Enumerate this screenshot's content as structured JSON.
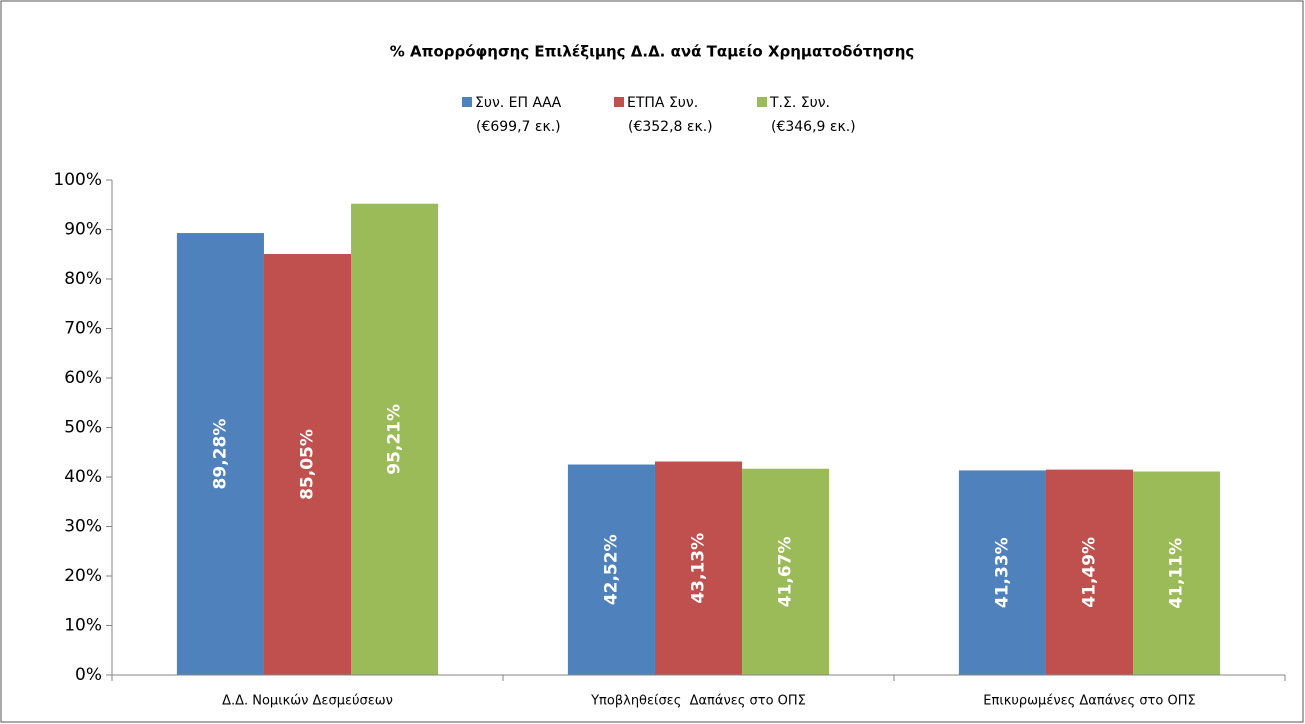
{
  "chart_data": {
    "type": "bar",
    "title": "% Απορρόφησης Επιλέξιμης Δ.Δ. ανά Ταμείο Χρηματοδότησης",
    "categories": [
      "Δ.Δ. Νομικών Δεσμεύσεων",
      "Υποβληθείσες  Δαπάνες στο ΟΠΣ",
      "Επικυρωμένες Δαπάνες στο ΟΠΣ"
    ],
    "series": [
      {
        "name": "Συν. ΕΠ ΑΑΑ\n(€699,7 εκ.)",
        "color": "#4f81bd",
        "values": [
          89.28,
          42.52,
          41.33
        ],
        "value_labels": [
          "89,28%",
          "42,52%",
          "41,33%"
        ]
      },
      {
        "name": "ΕΤΠΑ Συν.\n(€352,8 εκ.)",
        "color": "#c0504d",
        "values": [
          85.05,
          43.13,
          41.49
        ],
        "value_labels": [
          "85,05%",
          "43,13%",
          "41,49%"
        ]
      },
      {
        "name": "Τ.Σ. Συν.\n(€346,9 εκ.)",
        "color": "#9bbb59",
        "values": [
          95.21,
          41.67,
          41.11
        ],
        "value_labels": [
          "95,21%",
          "41,67%",
          "41,11%"
        ]
      }
    ],
    "ylim": [
      0,
      100
    ],
    "yticks": [
      {
        "value": 0,
        "label": "0%"
      },
      {
        "value": 10,
        "label": "10%"
      },
      {
        "value": 20,
        "label": "20%"
      },
      {
        "value": 30,
        "label": "30%"
      },
      {
        "value": 40,
        "label": "40%"
      },
      {
        "value": 50,
        "label": "50%"
      },
      {
        "value": 60,
        "label": "60%"
      },
      {
        "value": 70,
        "label": "70%"
      },
      {
        "value": 80,
        "label": "80%"
      },
      {
        "value": 90,
        "label": "90%"
      },
      {
        "value": 100,
        "label": "100%"
      }
    ],
    "legend": "top"
  }
}
